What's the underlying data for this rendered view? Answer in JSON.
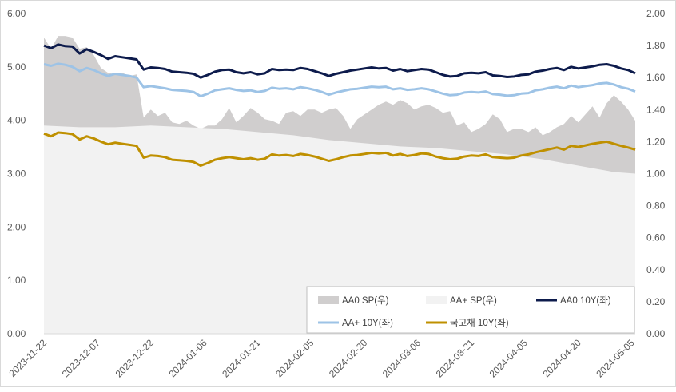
{
  "chart_data": {
    "type": "line",
    "title": "",
    "x_tick_labels": [
      "2023-11-22",
      "2023-12-07",
      "2023-12-22",
      "2024-01-06",
      "2024-01-21",
      "2024-02-05",
      "2024-02-20",
      "2024-03-06",
      "2024-03-21",
      "2024-04-05",
      "2024-04-20",
      "2024-05-05"
    ],
    "y_left": {
      "min": 0,
      "max": 6,
      "ticks": [
        "0.00",
        "1.00",
        "2.00",
        "3.00",
        "4.00",
        "5.00",
        "6.00"
      ]
    },
    "y_right": {
      "min": 0,
      "max": 2,
      "ticks": [
        "0.00",
        "0.20",
        "0.40",
        "0.60",
        "0.80",
        "1.00",
        "1.20",
        "1.40",
        "1.60",
        "1.80",
        "2.00"
      ]
    },
    "x_range": [
      0,
      166
    ],
    "legend_position": "bottom-right",
    "series": [
      {
        "name": "AA0 SP(우)",
        "type": "area",
        "axis": "right",
        "color": "#d0cece",
        "x": [
          0,
          2,
          4,
          6,
          8,
          10,
          12,
          14,
          16,
          18,
          20,
          22,
          24,
          26,
          28,
          30,
          32,
          34,
          36,
          38,
          40,
          42,
          44,
          46,
          48,
          50,
          52,
          54,
          56,
          58,
          60,
          62,
          64,
          66,
          68,
          70,
          72,
          74,
          76,
          78,
          80,
          82,
          84,
          86,
          88,
          90,
          92,
          94,
          96,
          98,
          100,
          102,
          104,
          106,
          108,
          110,
          112,
          114,
          116,
          118,
          120,
          122,
          124,
          126,
          128,
          130,
          132,
          134,
          136,
          138,
          140,
          142,
          144,
          146,
          148,
          150,
          152,
          154,
          156,
          158,
          160,
          162,
          164,
          166
        ],
        "values": [
          1.85,
          1.78,
          1.86,
          1.86,
          1.85,
          1.78,
          1.79,
          1.74,
          1.66,
          1.63,
          1.62,
          1.63,
          1.61,
          1.62,
          1.35,
          1.4,
          1.36,
          1.38,
          1.32,
          1.31,
          1.33,
          1.3,
          1.28,
          1.3,
          1.3,
          1.34,
          1.41,
          1.32,
          1.36,
          1.41,
          1.38,
          1.34,
          1.33,
          1.31,
          1.38,
          1.39,
          1.36,
          1.4,
          1.4,
          1.38,
          1.4,
          1.41,
          1.36,
          1.28,
          1.34,
          1.37,
          1.4,
          1.43,
          1.45,
          1.43,
          1.46,
          1.44,
          1.4,
          1.42,
          1.43,
          1.41,
          1.38,
          1.39,
          1.3,
          1.32,
          1.26,
          1.28,
          1.31,
          1.37,
          1.34,
          1.26,
          1.28,
          1.28,
          1.26,
          1.29,
          1.24,
          1.26,
          1.29,
          1.31,
          1.36,
          1.32,
          1.37,
          1.42,
          1.35,
          1.44,
          1.49,
          1.45,
          1.4,
          1.33
        ]
      },
      {
        "name": "AA+ SP(우)",
        "type": "area",
        "axis": "right",
        "color": "#f2f2f2",
        "x": [
          0,
          10,
          20,
          30,
          40,
          50,
          60,
          70,
          80,
          90,
          100,
          110,
          120,
          130,
          140,
          150,
          160,
          166
        ],
        "values": [
          1.3,
          1.29,
          1.29,
          1.3,
          1.29,
          1.28,
          1.26,
          1.24,
          1.21,
          1.19,
          1.17,
          1.16,
          1.14,
          1.12,
          1.09,
          1.05,
          1.01,
          1.0
        ]
      },
      {
        "name": "AA0 10Y(좌)",
        "type": "line",
        "axis": "left",
        "color": "#0d1b4c",
        "x": [
          0,
          2,
          4,
          6,
          8,
          10,
          12,
          14,
          16,
          18,
          20,
          22,
          24,
          26,
          28,
          30,
          32,
          34,
          36,
          38,
          40,
          42,
          44,
          46,
          48,
          50,
          52,
          54,
          56,
          58,
          60,
          62,
          64,
          66,
          68,
          70,
          72,
          74,
          76,
          78,
          80,
          82,
          84,
          86,
          88,
          90,
          92,
          94,
          96,
          98,
          100,
          102,
          104,
          106,
          108,
          110,
          112,
          114,
          116,
          118,
          120,
          122,
          124,
          126,
          128,
          130,
          132,
          134,
          136,
          138,
          140,
          142,
          144,
          146,
          148,
          150,
          152,
          154,
          156,
          158,
          160,
          162,
          164,
          166
        ],
        "values": [
          5.4,
          5.35,
          5.42,
          5.39,
          5.38,
          5.25,
          5.33,
          5.28,
          5.22,
          5.15,
          5.2,
          5.18,
          5.16,
          5.14,
          4.95,
          4.99,
          4.98,
          4.96,
          4.91,
          4.9,
          4.89,
          4.87,
          4.8,
          4.85,
          4.91,
          4.94,
          4.95,
          4.9,
          4.88,
          4.9,
          4.86,
          4.88,
          4.96,
          4.94,
          4.95,
          4.94,
          4.98,
          4.96,
          4.92,
          4.88,
          4.83,
          4.87,
          4.9,
          4.93,
          4.95,
          4.97,
          4.99,
          4.97,
          4.98,
          4.93,
          4.96,
          4.92,
          4.94,
          4.96,
          4.95,
          4.9,
          4.85,
          4.82,
          4.83,
          4.88,
          4.89,
          4.88,
          4.9,
          4.84,
          4.83,
          4.81,
          4.82,
          4.85,
          4.86,
          4.91,
          4.93,
          4.96,
          4.98,
          4.94,
          5.0,
          4.97,
          4.99,
          5.01,
          5.04,
          5.05,
          5.02,
          4.97,
          4.94,
          4.88
        ]
      },
      {
        "name": "AA+ 10Y(좌)",
        "type": "line",
        "axis": "left",
        "color": "#9dc3e6",
        "x": [
          0,
          2,
          4,
          6,
          8,
          10,
          12,
          14,
          16,
          18,
          20,
          22,
          24,
          26,
          28,
          30,
          32,
          34,
          36,
          38,
          40,
          42,
          44,
          46,
          48,
          50,
          52,
          54,
          56,
          58,
          60,
          62,
          64,
          66,
          68,
          70,
          72,
          74,
          76,
          78,
          80,
          82,
          84,
          86,
          88,
          90,
          92,
          94,
          96,
          98,
          100,
          102,
          104,
          106,
          108,
          110,
          112,
          114,
          116,
          118,
          120,
          122,
          124,
          126,
          128,
          130,
          132,
          134,
          136,
          138,
          140,
          142,
          144,
          146,
          148,
          150,
          152,
          154,
          156,
          158,
          160,
          162,
          164,
          166
        ],
        "values": [
          5.05,
          5.02,
          5.06,
          5.04,
          5.0,
          4.92,
          4.98,
          4.94,
          4.88,
          4.83,
          4.87,
          4.85,
          4.83,
          4.8,
          4.62,
          4.64,
          4.62,
          4.6,
          4.57,
          4.56,
          4.55,
          4.53,
          4.45,
          4.5,
          4.56,
          4.58,
          4.6,
          4.57,
          4.55,
          4.56,
          4.53,
          4.55,
          4.61,
          4.59,
          4.6,
          4.58,
          4.62,
          4.6,
          4.57,
          4.53,
          4.48,
          4.52,
          4.55,
          4.58,
          4.59,
          4.61,
          4.63,
          4.62,
          4.63,
          4.58,
          4.6,
          4.57,
          4.58,
          4.6,
          4.58,
          4.54,
          4.5,
          4.47,
          4.48,
          4.52,
          4.53,
          4.52,
          4.54,
          4.49,
          4.48,
          4.46,
          4.47,
          4.5,
          4.51,
          4.56,
          4.58,
          4.61,
          4.63,
          4.6,
          4.65,
          4.62,
          4.64,
          4.66,
          4.69,
          4.7,
          4.67,
          4.62,
          4.59,
          4.54
        ]
      },
      {
        "name": "국고채 10Y(좌)",
        "type": "line",
        "axis": "left",
        "color": "#bf9000",
        "x": [
          0,
          2,
          4,
          6,
          8,
          10,
          12,
          14,
          16,
          18,
          20,
          22,
          24,
          26,
          28,
          30,
          32,
          34,
          36,
          38,
          40,
          42,
          44,
          46,
          48,
          50,
          52,
          54,
          56,
          58,
          60,
          62,
          64,
          66,
          68,
          70,
          72,
          74,
          76,
          78,
          80,
          82,
          84,
          86,
          88,
          90,
          92,
          94,
          96,
          98,
          100,
          102,
          104,
          106,
          108,
          110,
          112,
          114,
          116,
          118,
          120,
          122,
          124,
          126,
          128,
          130,
          132,
          134,
          136,
          138,
          140,
          142,
          144,
          146,
          148,
          150,
          152,
          154,
          156,
          158,
          160,
          162,
          164,
          166
        ],
        "values": [
          3.75,
          3.7,
          3.77,
          3.76,
          3.74,
          3.64,
          3.7,
          3.66,
          3.6,
          3.55,
          3.58,
          3.56,
          3.54,
          3.52,
          3.3,
          3.34,
          3.33,
          3.31,
          3.26,
          3.25,
          3.24,
          3.22,
          3.15,
          3.2,
          3.26,
          3.29,
          3.31,
          3.29,
          3.27,
          3.29,
          3.26,
          3.28,
          3.36,
          3.34,
          3.35,
          3.33,
          3.37,
          3.35,
          3.32,
          3.28,
          3.24,
          3.27,
          3.31,
          3.34,
          3.35,
          3.37,
          3.39,
          3.38,
          3.39,
          3.34,
          3.37,
          3.33,
          3.35,
          3.38,
          3.37,
          3.32,
          3.29,
          3.27,
          3.28,
          3.32,
          3.34,
          3.33,
          3.36,
          3.31,
          3.3,
          3.29,
          3.3,
          3.34,
          3.36,
          3.4,
          3.43,
          3.46,
          3.49,
          3.45,
          3.52,
          3.5,
          3.53,
          3.56,
          3.58,
          3.6,
          3.56,
          3.52,
          3.49,
          3.45
        ]
      }
    ]
  }
}
